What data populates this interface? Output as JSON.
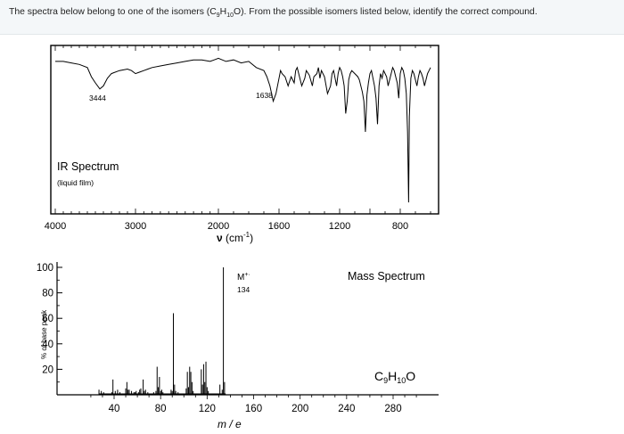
{
  "question": {
    "text_before": "The spectra below belong to one of the isomers (C",
    "sub1": "9",
    "mid1": "H",
    "sub2": "10",
    "text_after": "O).  From the possible isomers listed below, identify the correct compound."
  },
  "chart_data": [
    {
      "type": "line",
      "title": "IR Spectrum",
      "subtitle": "(liquid film)",
      "xlabel_symbol": "ν",
      "xlabel_unit_open": " (cm",
      "xlabel_unit_exp": "-1",
      "xlabel_unit_close": ")",
      "x_ticks": [
        "4000",
        "3000",
        "2000",
        "1600",
        "1200",
        "800"
      ],
      "x_tick_values": [
        4000,
        3000,
        2000,
        1600,
        1200,
        800
      ],
      "xlim": [
        4000,
        600
      ],
      "ylim": [
        0,
        100
      ],
      "grid": false,
      "annotations": [
        {
          "label": "3444",
          "x": 3444
        },
        {
          "label": "1638",
          "x": 1638
        }
      ],
      "x": [
        4000,
        3900,
        3800,
        3700,
        3600,
        3550,
        3500,
        3444,
        3400,
        3350,
        3300,
        3200,
        3100,
        3050,
        3000,
        2950,
        2900,
        2850,
        2800,
        2700,
        2600,
        2500,
        2400,
        2300,
        2200,
        2100,
        2050,
        2000,
        1950,
        1900,
        1850,
        1800,
        1750,
        1700,
        1680,
        1660,
        1638,
        1620,
        1600,
        1590,
        1580,
        1560,
        1540,
        1520,
        1500,
        1490,
        1480,
        1470,
        1460,
        1450,
        1430,
        1420,
        1400,
        1380,
        1370,
        1350,
        1340,
        1330,
        1320,
        1300,
        1280,
        1260,
        1250,
        1240,
        1230,
        1220,
        1210,
        1200,
        1190,
        1180,
        1170,
        1160,
        1150,
        1140,
        1130,
        1120,
        1100,
        1080,
        1070,
        1050,
        1040,
        1030,
        1020,
        1010,
        1000,
        990,
        980,
        970,
        960,
        950,
        940,
        930,
        920,
        910,
        900,
        890,
        880,
        870,
        860,
        850,
        840,
        830,
        820,
        810,
        800,
        790,
        780,
        770,
        760,
        752,
        745,
        740,
        730,
        720,
        710,
        700,
        690,
        680,
        670,
        660,
        650,
        640,
        630,
        620,
        610,
        600
      ],
      "y": [
        96,
        96,
        95,
        94,
        92,
        86,
        82,
        78,
        80,
        85,
        88,
        90,
        91,
        90,
        88,
        89,
        90,
        91,
        92,
        93,
        94,
        95,
        96,
        97,
        97,
        96,
        97,
        98,
        96,
        97,
        95,
        96,
        92,
        90,
        86,
        80,
        70,
        75,
        85,
        90,
        88,
        86,
        80,
        86,
        82,
        90,
        92,
        88,
        84,
        80,
        85,
        90,
        87,
        80,
        86,
        88,
        92,
        85,
        90,
        86,
        75,
        80,
        88,
        90,
        85,
        80,
        88,
        92,
        90,
        86,
        80,
        62,
        70,
        84,
        88,
        90,
        88,
        86,
        84,
        76,
        70,
        50,
        74,
        82,
        88,
        90,
        85,
        80,
        72,
        55,
        80,
        88,
        85,
        90,
        88,
        86,
        80,
        84,
        88,
        92,
        90,
        86,
        82,
        72,
        88,
        92,
        90,
        85,
        75,
        50,
        4,
        60,
        85,
        90,
        88,
        84,
        80,
        86,
        90,
        88,
        85,
        80,
        84,
        88,
        90,
        92
      ]
    },
    {
      "type": "bar",
      "title": "Mass Spectrum",
      "formula_c": "C",
      "formula_sub1": "9",
      "formula_h": "H",
      "formula_sub2": "10",
      "formula_o": "O",
      "xlabel": "m / e",
      "ylabel": "% of base peak",
      "xlim": [
        0,
        300
      ],
      "ylim": [
        0,
        100
      ],
      "x_ticks": [
        "40",
        "80",
        "120",
        "160",
        "200",
        "240",
        "280"
      ],
      "x_tick_values": [
        40,
        80,
        120,
        160,
        200,
        240,
        280
      ],
      "y_ticks": [
        "100",
        "80",
        "60",
        "40",
        "20"
      ],
      "y_tick_values": [
        100,
        80,
        60,
        40,
        20
      ],
      "molecular_ion_label": "M",
      "molecular_ion_sup": "+·",
      "molecular_ion_value": "134",
      "grid": false,
      "mz": [
        27,
        29,
        31,
        38,
        39,
        41,
        43,
        45,
        50,
        51,
        52,
        53,
        55,
        57,
        58,
        59,
        61,
        62,
        63,
        65,
        66,
        67,
        69,
        74,
        76,
        77,
        78,
        79,
        80,
        81,
        82,
        89,
        90,
        91,
        92,
        93,
        95,
        102,
        103,
        104,
        105,
        106,
        107,
        108,
        115,
        116,
        117,
        118,
        119,
        120,
        121,
        131,
        133,
        134,
        135
      ],
      "intensity": [
        4,
        3,
        2,
        2,
        12,
        3,
        4,
        2,
        5,
        10,
        4,
        4,
        3,
        2,
        2,
        3,
        2,
        4,
        5,
        12,
        3,
        4,
        2,
        2,
        3,
        22,
        6,
        14,
        3,
        4,
        2,
        4,
        3,
        64,
        8,
        3,
        2,
        5,
        18,
        6,
        22,
        18,
        10,
        3,
        20,
        8,
        24,
        10,
        26,
        6,
        3,
        8,
        4,
        100,
        10
      ]
    }
  ]
}
